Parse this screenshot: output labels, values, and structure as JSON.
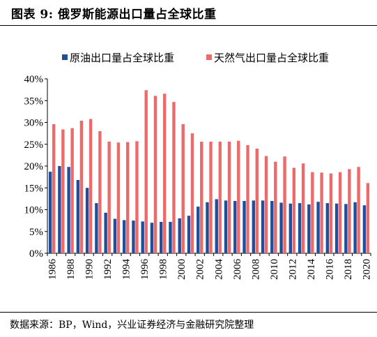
{
  "header": {
    "title": "图表 9:  俄罗斯能源出口量占全球比重"
  },
  "footer": {
    "source": "数据来源：BP，Wind，兴业证券经济与金融研究院整理"
  },
  "colors": {
    "oil": "#1f4e9a",
    "gas": "#ee6a6a",
    "axis": "#000000"
  },
  "chart_data": {
    "type": "bar",
    "title": "",
    "xlabel": "",
    "ylabel": "",
    "ylim": [
      0,
      40
    ],
    "yticks": [
      "0%",
      "5%",
      "10%",
      "15%",
      "20%",
      "25%",
      "30%",
      "35%",
      "40%"
    ],
    "y_unit": "%",
    "grid": false,
    "legend_position": "top",
    "categories": [
      "1986",
      "1987",
      "1988",
      "1989",
      "1990",
      "1991",
      "1992",
      "1993",
      "1994",
      "1995",
      "1996",
      "1997",
      "1998",
      "1999",
      "2000",
      "2001",
      "2002",
      "2003",
      "2004",
      "2005",
      "2006",
      "2007",
      "2008",
      "2009",
      "2010",
      "2011",
      "2012",
      "2013",
      "2014",
      "2015",
      "2016",
      "2017",
      "2018",
      "2019",
      "2020"
    ],
    "xtick_labels": [
      "1986",
      "1988",
      "1990",
      "1992",
      "1994",
      "1996",
      "1998",
      "2000",
      "2002",
      "2004",
      "2006",
      "2008",
      "2010",
      "2012",
      "2014",
      "2016",
      "2018",
      "2020"
    ],
    "series": [
      {
        "name": "原油出口量占全球比重",
        "color": "#1f4e9a",
        "values": [
          18.7,
          20.0,
          19.8,
          16.8,
          15.0,
          11.5,
          9.3,
          7.9,
          7.6,
          7.5,
          7.3,
          7.0,
          7.2,
          7.2,
          8.0,
          8.6,
          10.7,
          11.7,
          12.4,
          12.1,
          12.0,
          12.0,
          12.1,
          12.1,
          12.0,
          11.6,
          11.4,
          11.5,
          11.2,
          11.8,
          11.5,
          11.4,
          11.3,
          11.7,
          11.0
        ]
      },
      {
        "name": "天然气出口量占全球比重",
        "color": "#ee6a6a",
        "values": [
          29.6,
          28.4,
          28.7,
          30.4,
          30.8,
          28.0,
          25.6,
          25.4,
          25.5,
          25.7,
          37.4,
          36.1,
          36.6,
          34.7,
          29.6,
          27.5,
          25.6,
          25.6,
          25.6,
          25.6,
          25.8,
          24.8,
          24.0,
          22.3,
          21.0,
          22.2,
          19.6,
          20.6,
          18.6,
          18.5,
          18.3,
          18.6,
          19.3,
          19.8,
          16.1
        ]
      }
    ]
  }
}
